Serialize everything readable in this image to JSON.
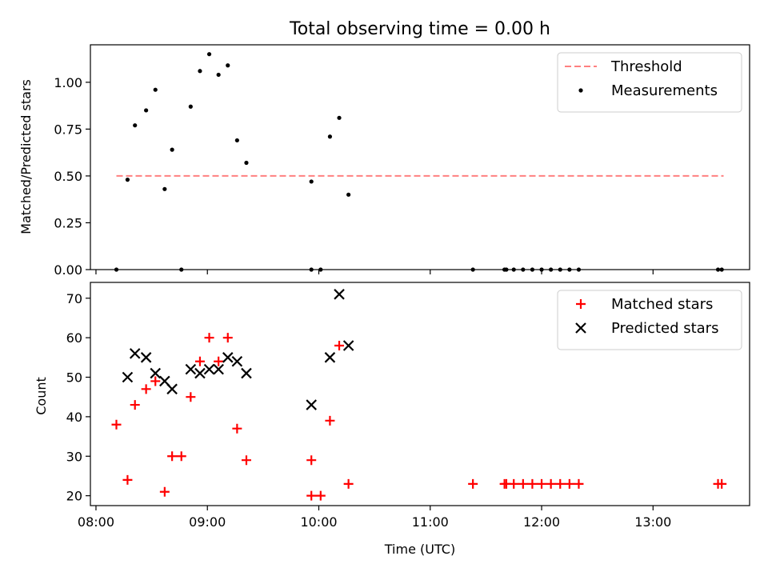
{
  "figure_title": "Total observing time = 0.00 h",
  "chart_data": [
    {
      "type": "scatter",
      "panel": "top",
      "ylabel": "Matched/Predicted stars",
      "xlabel": "",
      "xlim": [
        "07:57",
        "13:52"
      ],
      "ylim": [
        0,
        1.2
      ],
      "yticks": [
        "0.00",
        "0.25",
        "0.50",
        "0.75",
        "1.00"
      ],
      "grid": false,
      "legend_position": "top-right",
      "threshold": {
        "name": "Threshold",
        "value": 0.5,
        "x_range": [
          "08:11",
          "13:38"
        ],
        "color": "#ff8080",
        "style": "dashed"
      },
      "series": [
        {
          "name": "Measurements",
          "marker": "dot",
          "color": "#000000",
          "points": [
            [
              "08:11",
              0.0
            ],
            [
              "08:17",
              0.48
            ],
            [
              "08:21",
              0.77
            ],
            [
              "08:27",
              0.85
            ],
            [
              "08:32",
              0.96
            ],
            [
              "08:37",
              0.43
            ],
            [
              "08:41",
              0.64
            ],
            [
              "08:46",
              0.0
            ],
            [
              "08:51",
              0.87
            ],
            [
              "08:56",
              1.06
            ],
            [
              "09:01",
              1.15
            ],
            [
              "09:06",
              1.04
            ],
            [
              "09:11",
              1.09
            ],
            [
              "09:16",
              0.69
            ],
            [
              "09:21",
              0.57
            ],
            [
              "09:56",
              0.47
            ],
            [
              "09:56",
              0.0
            ],
            [
              "10:01",
              0.0
            ],
            [
              "10:06",
              0.71
            ],
            [
              "10:11",
              0.81
            ],
            [
              "10:16",
              0.4
            ],
            [
              "11:23",
              0.0
            ],
            [
              "11:40",
              0.0
            ],
            [
              "11:41",
              0.0
            ],
            [
              "11:45",
              0.0
            ],
            [
              "11:50",
              0.0
            ],
            [
              "11:55",
              0.0
            ],
            [
              "12:00",
              0.0
            ],
            [
              "12:05",
              0.0
            ],
            [
              "12:10",
              0.0
            ],
            [
              "12:15",
              0.0
            ],
            [
              "12:20",
              0.0
            ],
            [
              "13:35",
              0.0
            ],
            [
              "13:37",
              0.0
            ]
          ]
        }
      ]
    },
    {
      "type": "scatter",
      "panel": "bottom",
      "xlabel": "Time (UTC)",
      "ylabel": "Count",
      "xlim": [
        "07:57",
        "13:52"
      ],
      "ylim": [
        17.5,
        74
      ],
      "xticks": [
        "08:00",
        "09:00",
        "10:00",
        "11:00",
        "12:00",
        "13:00"
      ],
      "yticks": [
        "20",
        "30",
        "40",
        "50",
        "60",
        "70"
      ],
      "grid": false,
      "legend_position": "top-right",
      "series": [
        {
          "name": "Matched stars",
          "marker": "plus",
          "color": "#ff0000",
          "points": [
            [
              "08:11",
              38
            ],
            [
              "08:17",
              24
            ],
            [
              "08:21",
              43
            ],
            [
              "08:27",
              47
            ],
            [
              "08:32",
              49
            ],
            [
              "08:37",
              21
            ],
            [
              "08:41",
              30
            ],
            [
              "08:46",
              30
            ],
            [
              "08:51",
              45
            ],
            [
              "08:56",
              54
            ],
            [
              "09:01",
              60
            ],
            [
              "09:06",
              54
            ],
            [
              "09:11",
              60
            ],
            [
              "09:16",
              37
            ],
            [
              "09:21",
              29
            ],
            [
              "09:56",
              29
            ],
            [
              "09:56",
              20
            ],
            [
              "10:01",
              20
            ],
            [
              "10:06",
              39
            ],
            [
              "10:11",
              58
            ],
            [
              "10:16",
              23
            ],
            [
              "11:23",
              23
            ],
            [
              "11:40",
              23
            ],
            [
              "11:41",
              23
            ],
            [
              "11:45",
              23
            ],
            [
              "11:50",
              23
            ],
            [
              "11:55",
              23
            ],
            [
              "12:00",
              23
            ],
            [
              "12:05",
              23
            ],
            [
              "12:10",
              23
            ],
            [
              "12:15",
              23
            ],
            [
              "12:20",
              23
            ],
            [
              "13:35",
              23
            ],
            [
              "13:37",
              23
            ]
          ]
        },
        {
          "name": "Predicted stars",
          "marker": "x",
          "color": "#000000",
          "points": [
            [
              "08:17",
              50
            ],
            [
              "08:21",
              56
            ],
            [
              "08:27",
              55
            ],
            [
              "08:32",
              51
            ],
            [
              "08:37",
              49
            ],
            [
              "08:41",
              47
            ],
            [
              "08:51",
              52
            ],
            [
              "08:56",
              51
            ],
            [
              "09:01",
              52
            ],
            [
              "09:06",
              52
            ],
            [
              "09:11",
              55
            ],
            [
              "09:16",
              54
            ],
            [
              "09:21",
              51
            ],
            [
              "09:56",
              43
            ],
            [
              "10:06",
              55
            ],
            [
              "10:11",
              71
            ],
            [
              "10:16",
              58
            ]
          ]
        }
      ]
    }
  ]
}
